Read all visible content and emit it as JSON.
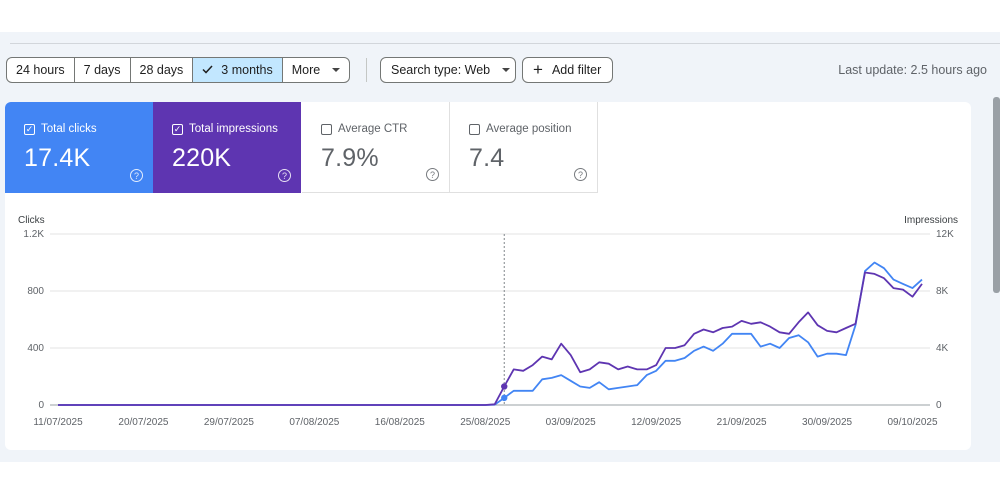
{
  "toolbar": {
    "ranges": [
      {
        "label": "24 hours",
        "active": false
      },
      {
        "label": "7 days",
        "active": false
      },
      {
        "label": "28 days",
        "active": false
      },
      {
        "label": "3 months",
        "active": true
      },
      {
        "label": "More",
        "active": false
      }
    ],
    "search_type": "Search type: Web",
    "add_filter": "Add filter",
    "last_update": "Last update: 2.5 hours ago"
  },
  "metrics": {
    "clicks": {
      "label": "Total clicks",
      "value": "17.4K",
      "checked": true
    },
    "impressions": {
      "label": "Total impressions",
      "value": "220K",
      "checked": true
    },
    "ctr": {
      "label": "Average CTR",
      "value": "7.9%",
      "checked": false
    },
    "position": {
      "label": "Average position",
      "value": "7.4",
      "checked": false
    }
  },
  "colors": {
    "clicks": "#4285f4",
    "impressions": "#5e35b1",
    "accent": "#c2e7ff"
  },
  "chart_data": {
    "type": "line",
    "ylabel_left": "Clicks",
    "ylabel_right": "Impressions",
    "y_left_ticks": [
      "0",
      "400",
      "800",
      "1.2K"
    ],
    "y_right_ticks": [
      "0",
      "4K",
      "8K",
      "12K"
    ],
    "ylim_left": [
      0,
      1200
    ],
    "ylim_right": [
      0,
      12000
    ],
    "x_tick_labels": [
      "11/07/2025",
      "20/07/2025",
      "29/07/2025",
      "07/08/2025",
      "16/08/2025",
      "25/08/2025",
      "03/09/2025",
      "12/09/2025",
      "21/09/2025",
      "30/09/2025",
      "09/10/2025"
    ],
    "x_start": "11/07/2025",
    "grid": true,
    "cursor_date": "27/08/2025",
    "series": [
      {
        "name": "Clicks",
        "axis": "left",
        "values": [
          0,
          0,
          0,
          0,
          0,
          0,
          0,
          0,
          0,
          0,
          0,
          0,
          0,
          0,
          0,
          0,
          0,
          0,
          0,
          0,
          0,
          0,
          0,
          0,
          0,
          0,
          0,
          0,
          0,
          0,
          0,
          0,
          0,
          0,
          0,
          0,
          0,
          0,
          0,
          0,
          0,
          0,
          0,
          0,
          0,
          0,
          2,
          50,
          100,
          100,
          100,
          180,
          190,
          210,
          170,
          130,
          120,
          160,
          110,
          120,
          130,
          140,
          210,
          240,
          310,
          310,
          330,
          380,
          410,
          380,
          430,
          500,
          500,
          500,
          410,
          430,
          400,
          470,
          490,
          440,
          340,
          360,
          360,
          350,
          560,
          940,
          1000,
          960,
          880,
          850,
          820,
          880
        ]
      },
      {
        "name": "Impressions",
        "axis": "right",
        "values": [
          0,
          0,
          0,
          0,
          0,
          0,
          0,
          0,
          0,
          0,
          0,
          0,
          0,
          0,
          0,
          0,
          0,
          0,
          0,
          0,
          0,
          0,
          0,
          0,
          0,
          0,
          0,
          0,
          0,
          0,
          0,
          0,
          0,
          0,
          0,
          0,
          0,
          0,
          0,
          0,
          0,
          0,
          0,
          0,
          0,
          0,
          50,
          1300,
          2500,
          2400,
          2800,
          3400,
          3200,
          4300,
          3500,
          2300,
          2500,
          3000,
          2900,
          2500,
          2700,
          2500,
          2500,
          2800,
          4000,
          4000,
          4200,
          5000,
          5300,
          5100,
          5400,
          5500,
          5900,
          5700,
          5800,
          5500,
          5100,
          5000,
          5800,
          6500,
          5600,
          5200,
          5100,
          5400,
          5700,
          9300,
          9200,
          8900,
          8200,
          8100,
          7600,
          8500
        ]
      }
    ]
  }
}
